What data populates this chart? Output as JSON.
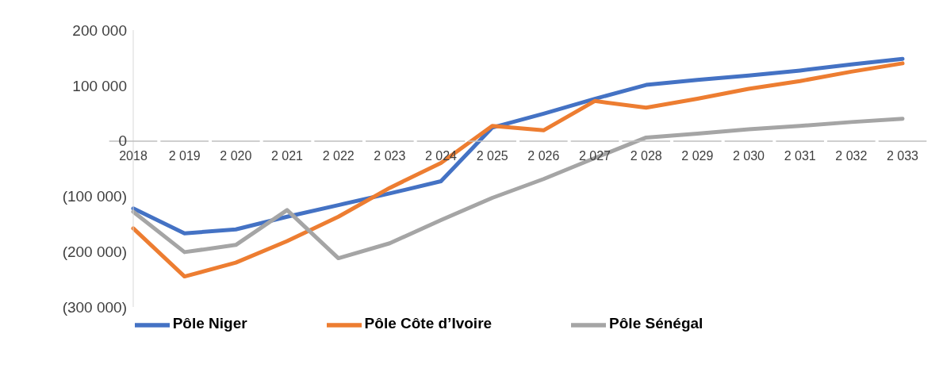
{
  "chart_data": {
    "type": "line",
    "categories": [
      "2018",
      "2 019",
      "2 020",
      "2 021",
      "2 022",
      "2 023",
      "2 024",
      "2 025",
      "2 026",
      "2 027",
      "2 028",
      "2 029",
      "2 030",
      "2 031",
      "2 032",
      "2 033"
    ],
    "series": [
      {
        "name": "Pôle Niger",
        "color": "#4472c4",
        "values": [
          -122000,
          -167000,
          -160000,
          -137000,
          -116000,
          -95000,
          -73000,
          24000,
          49000,
          76000,
          101000,
          110000,
          118000,
          127000,
          138000,
          148000
        ]
      },
      {
        "name": "Pôle Côte d’Ivoire",
        "color": "#ed7d31",
        "values": [
          -158000,
          -245000,
          -220000,
          -181000,
          -137000,
          -85000,
          -40000,
          27000,
          19000,
          72000,
          60000,
          76000,
          94000,
          108000,
          125000,
          140000
        ]
      },
      {
        "name": "Pôle Sénégal",
        "color": "#a5a5a5",
        "values": [
          -128000,
          -201000,
          -188000,
          -125000,
          -212000,
          -185000,
          -143000,
          -103000,
          -69000,
          -31000,
          6000,
          13000,
          21000,
          27000,
          34000,
          40000
        ]
      }
    ],
    "ylim": [
      -300000,
      200000
    ],
    "yticks": [
      {
        "value": -300000,
        "label": "(300 000)"
      },
      {
        "value": -200000,
        "label": "(200 000)"
      },
      {
        "value": -100000,
        "label": "(100 000)"
      },
      {
        "value": 0,
        "label": "0"
      },
      {
        "value": 100000,
        "label": "100 000"
      },
      {
        "value": 200000,
        "label": "200 000"
      }
    ],
    "grid": false,
    "legend": "bottom",
    "marker": "none",
    "line_style": "solid"
  }
}
